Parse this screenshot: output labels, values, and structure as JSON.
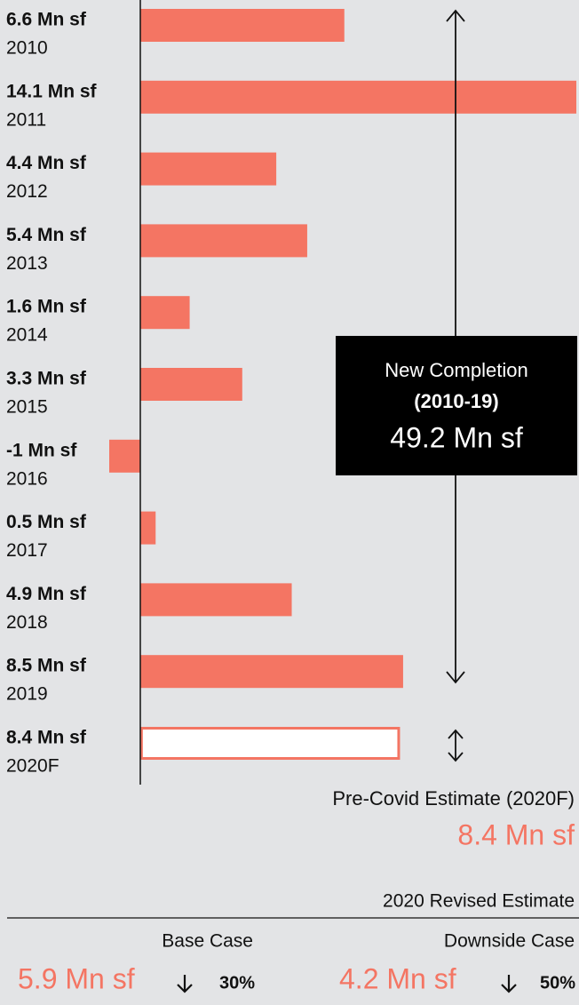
{
  "chart_data": {
    "type": "barh",
    "categories": [
      "2010",
      "2011",
      "2012",
      "2013",
      "2014",
      "2015",
      "2016",
      "2017",
      "2018",
      "2019",
      "2020F"
    ],
    "values": [
      6.6,
      14.1,
      4.4,
      5.4,
      1.6,
      3.3,
      -1,
      0.5,
      4.9,
      8.5,
      8.4
    ],
    "value_labels": [
      "6.6 Mn sf",
      "14.1 Mn sf",
      "4.4 Mn sf",
      "5.4 Mn sf",
      "1.6 Mn sf",
      "3.3 Mn sf",
      "-1 Mn sf",
      "0.5 Mn sf",
      "4.9 Mn sf",
      "8.5 Mn sf",
      "8.4 Mn sf"
    ],
    "colors": [
      "#f47563",
      "#f47563",
      "#f47563",
      "#f47563",
      "#f47563",
      "#f47563",
      "#f47563",
      "#f47563",
      "#f47563",
      "#f47563",
      "#ffffff"
    ],
    "edgecolor": "#f47563",
    "xlim": [
      -1,
      14.1
    ],
    "annotation": {
      "line1": "New Completion",
      "line2": "(2010-19)",
      "value": "49.2 Mn sf"
    },
    "pre_covid": {
      "label": "Pre-Covid Estimate (2020F)",
      "value": "8.4 Mn sf"
    },
    "revised": {
      "title": "2020 Revised Estimate",
      "base": {
        "label": "Base Case",
        "value": "5.9 Mn sf",
        "change": "30%"
      },
      "downside": {
        "label": "Downside Case",
        "value": "4.2 Mn sf",
        "change": "50%"
      }
    }
  }
}
